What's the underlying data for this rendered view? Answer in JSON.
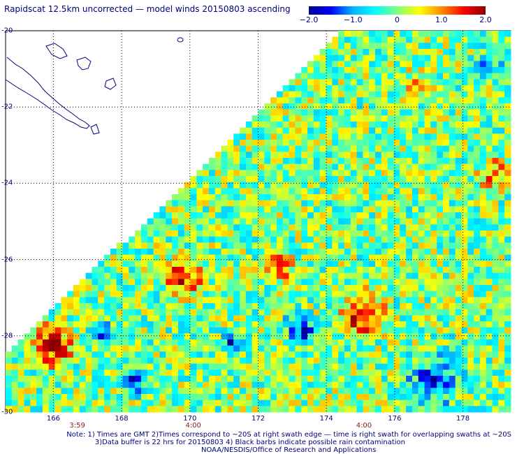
{
  "title": "Rapidscat 12.5km uncorrected — model winds 20150803 ascending",
  "colorbar": {
    "min": -2.0,
    "max": 2.0,
    "tick_labels": [
      "−2.0",
      "−1.0",
      "0",
      "1.0",
      "2.0"
    ],
    "tick_values": [
      -2.0,
      -1.0,
      0,
      1.0,
      2.0
    ],
    "colors": [
      "#00008b",
      "#0000ff",
      "#00b4ff",
      "#00ffff",
      "#7fff7f",
      "#ffff00",
      "#ff8c00",
      "#ff0000",
      "#8b0000"
    ]
  },
  "lat_labels": [
    "-20",
    "-22",
    "-24",
    "-26",
    "-28",
    "-30"
  ],
  "lat_values": [
    -20,
    -22,
    -24,
    -26,
    -28,
    -30
  ],
  "lon_labels": [
    "166",
    "168",
    "170",
    "172",
    "174",
    "176",
    "178"
  ],
  "lon_values": [
    166,
    168,
    170,
    172,
    174,
    176,
    178
  ],
  "time_labels": [
    {
      "text": "3:59",
      "lon": 166.7
    },
    {
      "text": "4:00",
      "lon": 170.1
    },
    {
      "text": "4:00",
      "lon": 175.1
    }
  ],
  "notes": {
    "line1": "Note: 1) Times are GMT 2)Times correspond to ~20S at right swath edge — time is right swath for overlapping swaths at ~20S",
    "line2": "3)Data buffer is 22 hrs for 20150803 4) Black barbs indicate possible rain contamination",
    "credit": "NOAA/NESDIS/Office of Research and Applications"
  },
  "map": {
    "lon_range": [
      164.6,
      179.4
    ],
    "lat_range": [
      -30,
      -20
    ],
    "coast_color": "#00007a",
    "grid_color": "#000000"
  }
}
